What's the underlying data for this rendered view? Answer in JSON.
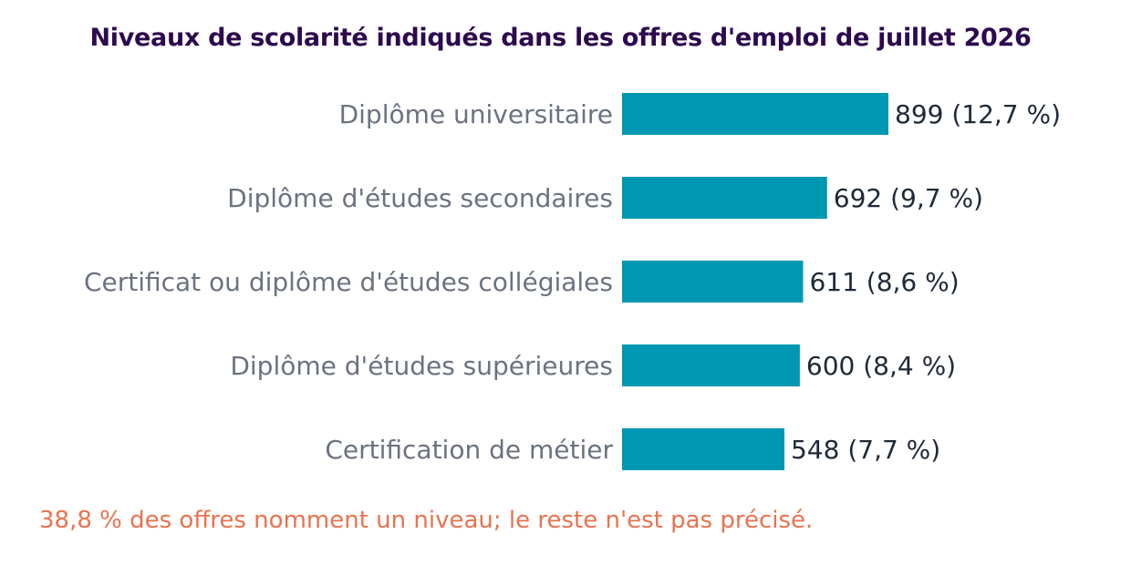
{
  "chart_data": {
    "type": "bar",
    "orientation": "horizontal",
    "title": "Niveaux de scolarité indiqués dans les offres d'emploi de juillet 2026",
    "categories": [
      "Diplôme universitaire",
      "Diplôme d'études secondaires",
      "Certificat ou diplôme d'études collégiales",
      "Diplôme d'études supérieures",
      "Certification de métier"
    ],
    "values": [
      899,
      692,
      611,
      600,
      548
    ],
    "percent_labels": [
      "(12,7 %)",
      "(9,7 %)",
      "(8,6 %)",
      "(8,4 %)",
      "(7,7 %)"
    ],
    "bar_color": "#0097b2",
    "xlim": [
      0,
      899
    ],
    "grid": false,
    "legend": "none"
  },
  "footnote": "38,8 % des offres nomment un niveau; le reste n'est pas précisé."
}
